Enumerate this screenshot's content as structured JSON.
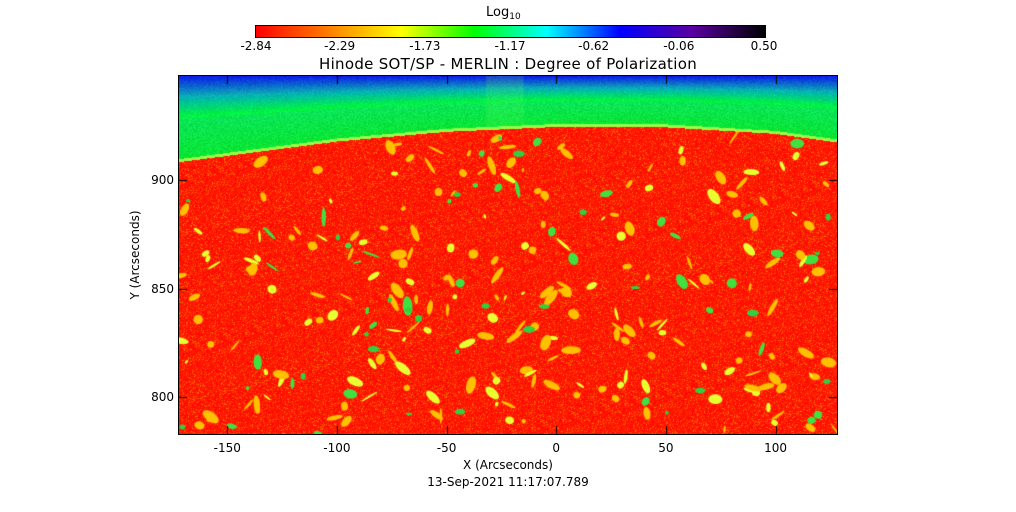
{
  "colorbar": {
    "title": "Log",
    "title_subscript": "10",
    "ticks": [
      "-2.84",
      "-2.29",
      "-1.73",
      "-1.17",
      "-0.62",
      "-0.06",
      "0.50"
    ],
    "range": [
      -2.84,
      0.5
    ],
    "colors": [
      "#ff0000",
      "#ff7f00",
      "#ffff00",
      "#00ff00",
      "#00ffff",
      "#0000ff",
      "#5a00a0",
      "#000000"
    ]
  },
  "chart_data": {
    "type": "heatmap",
    "title": "Hinode SOT/SP - MERLIN : Degree of Polarization",
    "xlabel": "X (Arcseconds)",
    "ylabel": "Y (Arcseconds)",
    "subtitle": "13-Sep-2021 11:17:07.789",
    "xlim": [
      -172,
      128
    ],
    "ylim": [
      783,
      948
    ],
    "xticks": [
      -150,
      -100,
      -50,
      0,
      50,
      100
    ],
    "yticks": [
      800,
      850,
      900
    ],
    "grid": false,
    "limb_profile": {
      "x": [
        -172,
        -100,
        -50,
        0,
        50,
        100,
        128
      ],
      "y": [
        909,
        918.5,
        923,
        925.2,
        925,
        922,
        918
      ]
    },
    "colors": {
      "disk": "#ff1a00",
      "limb_edge": "#8fff40",
      "off_limb_low": "#00e070",
      "off_limb_high": "#1000e0"
    }
  }
}
